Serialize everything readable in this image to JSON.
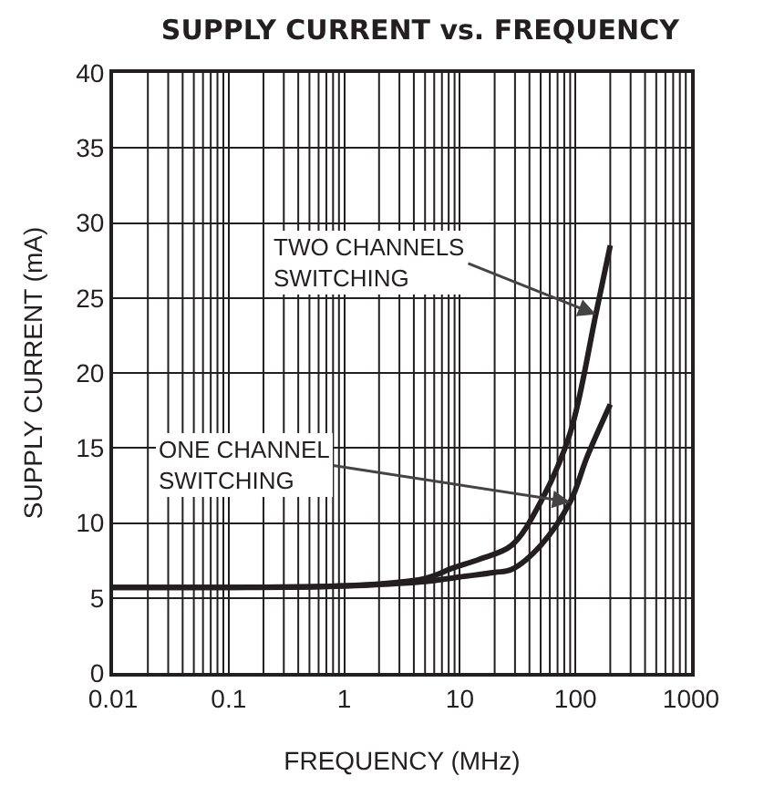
{
  "chart_data": {
    "type": "line",
    "title": "SUPPLY CURRENT vs. FREQUENCY",
    "xlabel": "FREQUENCY (MHz)",
    "ylabel": "SUPPLY CURRENT (mA)",
    "log": "x",
    "grid": true,
    "xlim": [
      0.01,
      1000
    ],
    "xticks": [
      0.01,
      0.1,
      1,
      10,
      100,
      1000
    ],
    "ylim": [
      0,
      40
    ],
    "yticks": [
      0,
      5,
      10,
      15,
      20,
      25,
      30,
      35,
      40
    ],
    "series": [
      {
        "color": "#231f20",
        "x": [
          0.01,
          0.1,
          1,
          5,
          8.7,
          15,
          28,
          50,
          90,
          150,
          200
        ],
        "values": [
          5.7,
          5.7,
          5.8,
          6.3,
          7,
          7.6,
          8.5,
          11.4,
          16,
          23.9,
          28.5
        ]
      },
      {
        "color": "#231f20",
        "x": [
          0.01,
          0.1,
          1,
          5,
          10,
          20,
          28,
          50,
          90,
          126,
          200
        ],
        "values": [
          5.7,
          5.7,
          5.8,
          6.1,
          6.4,
          6.7,
          6.9,
          8.5,
          11.4,
          14.4,
          17.9
        ]
      }
    ],
    "annotations": [
      {
        "text": "TWO CHANNELS\nSWITCHING",
        "x": 150,
        "y": 23.9
      },
      {
        "text": "ONE CHANNEL\nSWITCHING",
        "x": 90,
        "y": 11.4
      }
    ]
  }
}
